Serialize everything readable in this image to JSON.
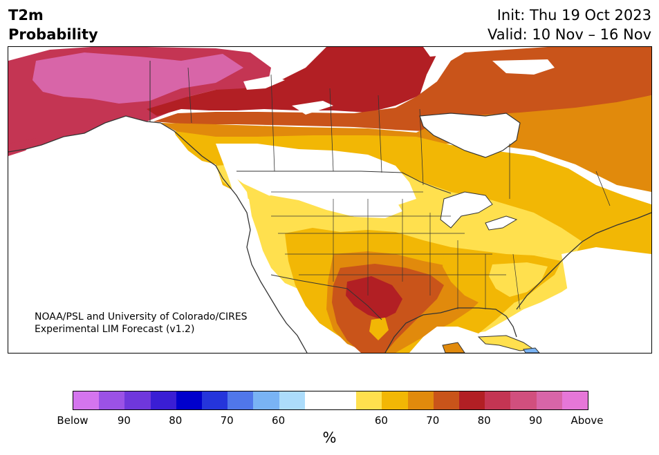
{
  "header": {
    "variable": "T2m",
    "product": "Probability",
    "init": "Init: Thu 19 Oct 2023",
    "valid": "Valid: 10 Nov – 16 Nov"
  },
  "credit": {
    "line1": "NOAA/PSL and University of Colorado/CIRES",
    "line2": "Experimental LIM Forecast (v1.2)"
  },
  "colorbar": {
    "colors": [
      "#d475ee",
      "#9b52e6",
      "#6f37dc",
      "#3a1ed4",
      "#0000cc",
      "#2535db",
      "#5077ea",
      "#79b3f4",
      "#acdcfb",
      "#ffffff",
      "#ffffff",
      "#ffe04e",
      "#f2b705",
      "#e18a0c",
      "#c9541a",
      "#b21f24",
      "#c43553",
      "#d14f7e",
      "#d865a8",
      "#e677d8"
    ],
    "ticks": [
      {
        "label": "Below",
        "index": 0
      },
      {
        "label": "90",
        "index": 2
      },
      {
        "label": "80",
        "index": 4
      },
      {
        "label": "70",
        "index": 6
      },
      {
        "label": "60",
        "index": 8
      },
      {
        "label": "60",
        "index": 12
      },
      {
        "label": "70",
        "index": 14
      },
      {
        "label": "80",
        "index": 16
      },
      {
        "label": "90",
        "index": 18
      },
      {
        "label": "Above",
        "index": 20
      }
    ],
    "unit": "%"
  }
}
